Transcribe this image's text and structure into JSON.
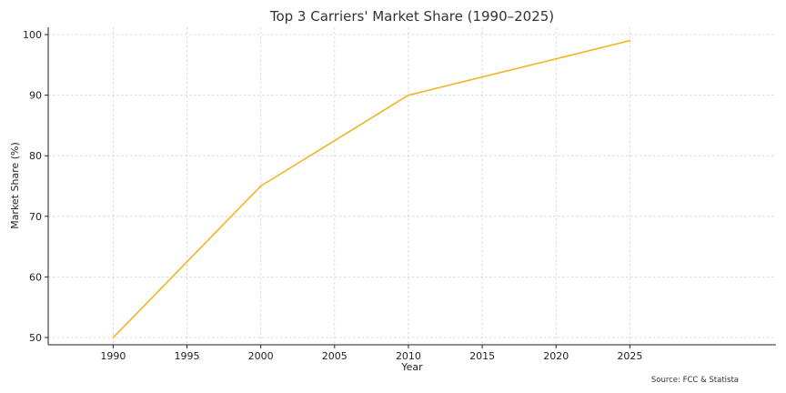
{
  "chart_data": {
    "type": "line",
    "title": "Top 3 Carriers' Market Share (1990–2025)",
    "xlabel": "Year",
    "ylabel": "Market Share (%)",
    "xlim": [
      1985.6,
      2034.9
    ],
    "ylim": [
      48.8,
      101.2
    ],
    "xticks": [
      1990,
      1995,
      2000,
      2005,
      2010,
      2015,
      2020,
      2025
    ],
    "yticks": [
      50,
      60,
      70,
      80,
      90,
      100
    ],
    "grid": true,
    "source": "Source: FCC & Statista",
    "color": "#f0b323",
    "series": [
      {
        "name": "Top 3 Carriers",
        "x": [
          1990,
          2000,
          2010,
          2025
        ],
        "y": [
          50,
          75,
          90,
          99
        ]
      }
    ]
  }
}
